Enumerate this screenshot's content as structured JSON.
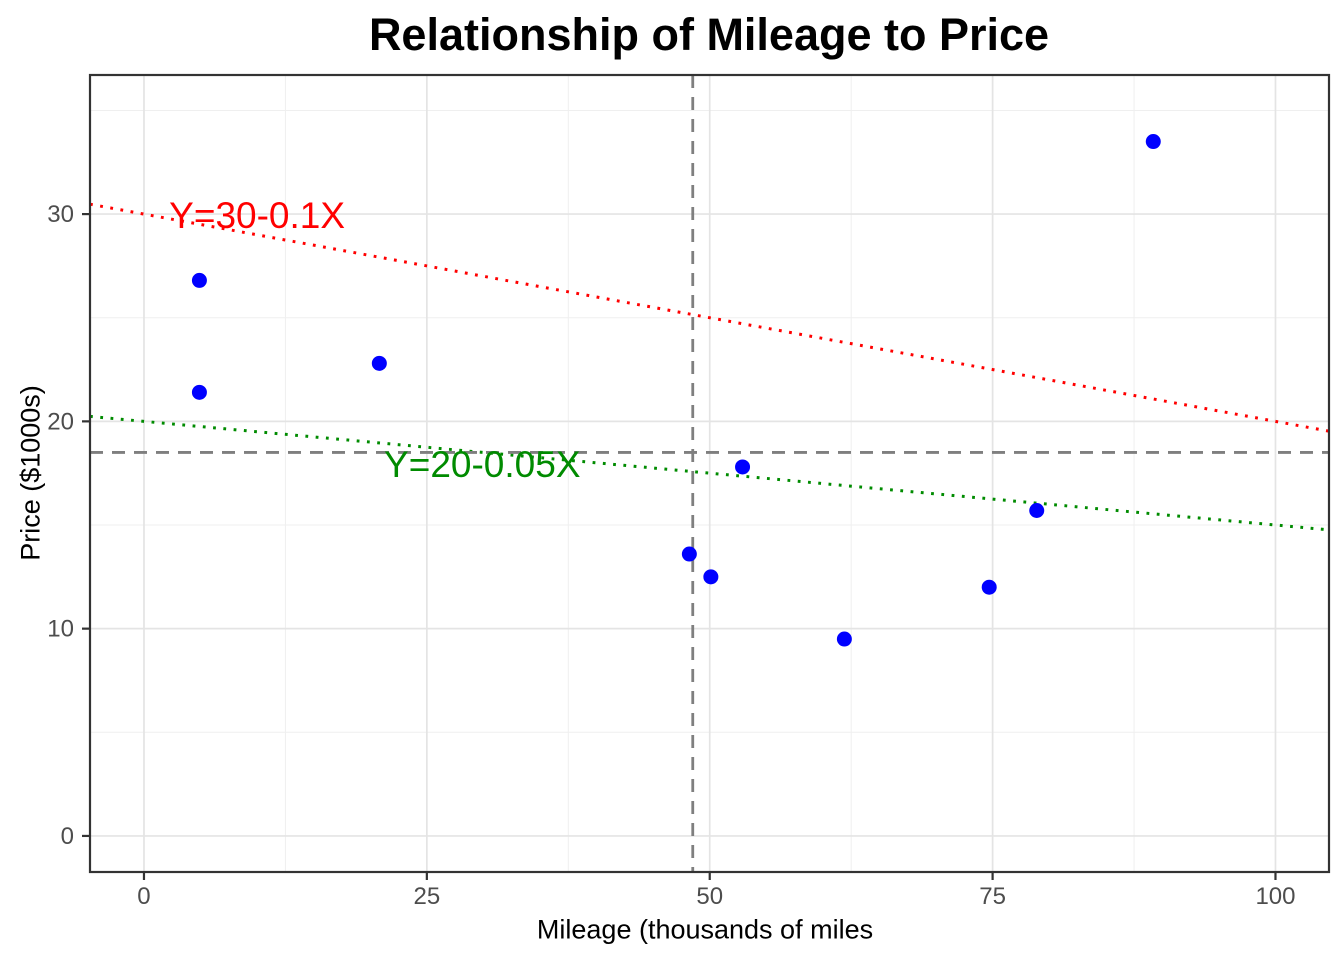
{
  "chart_data": {
    "type": "scatter",
    "title": "Relationship of Mileage to Price",
    "xlabel": "Mileage (thousands of miles",
    "ylabel": "Price ($1000s)",
    "xlim": [
      -4.77,
      104.73
    ],
    "ylim": [
      -1.74,
      36.71
    ],
    "x_ticks": [
      0,
      25,
      50,
      75,
      100
    ],
    "y_ticks": [
      0,
      10,
      20,
      30
    ],
    "x_minor_ticks": [
      12.5,
      37.5,
      62.5,
      87.5
    ],
    "y_minor_ticks": [
      5,
      15,
      25,
      35
    ],
    "grid": true,
    "legend": false,
    "points": [
      [
        4.9,
        26.8
      ],
      [
        4.9,
        21.4
      ],
      [
        20.8,
        22.8
      ],
      [
        48.2,
        13.6
      ],
      [
        50.1,
        12.5
      ],
      [
        52.9,
        17.8
      ],
      [
        61.9,
        9.5
      ],
      [
        74.7,
        12.0
      ],
      [
        78.9,
        15.7
      ],
      [
        89.2,
        33.5
      ]
    ],
    "ablines": [
      {
        "label": "Y=30-0.1X",
        "intercept": 30,
        "slope": -0.1,
        "color": "#FF0000",
        "style": "dotted",
        "label_x": 10.0,
        "label_y": 29.9
      },
      {
        "label": "Y=20-0.05X",
        "intercept": 20,
        "slope": -0.05,
        "color": "#008B00",
        "style": "dotted",
        "label_x": 29.9,
        "label_y": 17.9
      }
    ],
    "reference_lines": {
      "hline_y": 18.5,
      "vline_x": 48.5,
      "color": "#7F7F7F",
      "style": "dashed"
    },
    "style": {
      "point_color": "#0000FF",
      "axis_text_color": "#4D4D4D",
      "panel_border_color": "#333333",
      "grid_major_color": "#E4E4E4",
      "grid_minor_color": "#EFEFEF",
      "background": "#FFFFFF"
    }
  }
}
